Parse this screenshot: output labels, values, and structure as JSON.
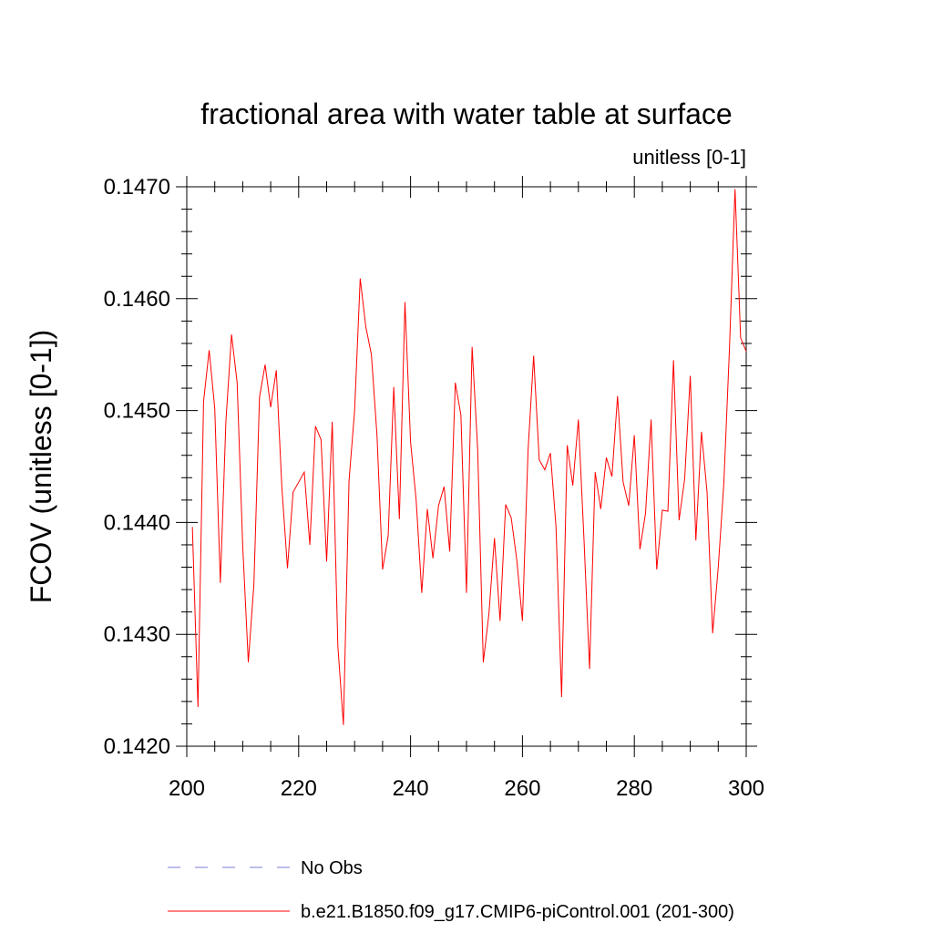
{
  "chart_data": {
    "type": "line",
    "title": "fractional area with water table at surface",
    "subtitle": "unitless [0-1]",
    "xlabel": "",
    "ylabel": "FCOV  (unitless [0-1])",
    "xlim": [
      200,
      300
    ],
    "ylim": [
      0.142,
      0.147
    ],
    "x_ticks": [
      "200",
      "220",
      "240",
      "260",
      "280",
      "300"
    ],
    "x_tick_values": [
      200,
      220,
      240,
      260,
      280,
      300
    ],
    "y_ticks": [
      "0.1420",
      "0.1430",
      "0.1440",
      "0.1450",
      "0.1460",
      "0.1470"
    ],
    "y_tick_values": [
      0.142,
      0.143,
      0.144,
      0.145,
      0.146,
      0.147
    ],
    "legend_position": "bottom",
    "series": [
      {
        "name": "b.e21.B1850.f09_g17.CMIP6-piControl.001 (201-300)",
        "color": "#ff0000",
        "style": "solid",
        "x": [
          201,
          202,
          203,
          204,
          205,
          206,
          207,
          208,
          209,
          210,
          211,
          212,
          213,
          214,
          215,
          216,
          217,
          218,
          219,
          220,
          221,
          222,
          223,
          224,
          225,
          226,
          227,
          228,
          229,
          230,
          231,
          232,
          233,
          234,
          235,
          236,
          237,
          238,
          239,
          240,
          241,
          242,
          243,
          244,
          245,
          246,
          247,
          248,
          249,
          250,
          251,
          252,
          253,
          254,
          255,
          256,
          257,
          258,
          259,
          260,
          261,
          262,
          263,
          264,
          265,
          266,
          267,
          268,
          269,
          270,
          271,
          272,
          273,
          274,
          275,
          276,
          277,
          278,
          279,
          280,
          281,
          282,
          283,
          284,
          285,
          286,
          287,
          288,
          289,
          290,
          291,
          292,
          293,
          294,
          295,
          296,
          297,
          298,
          299,
          300
        ],
        "values": [
          0.14396,
          0.14235,
          0.14508,
          0.14554,
          0.14502,
          0.14346,
          0.14491,
          0.14568,
          0.14525,
          0.14379,
          0.14275,
          0.14345,
          0.14512,
          0.14541,
          0.14503,
          0.14536,
          0.14431,
          0.14359,
          0.14427,
          0.14436,
          0.14445,
          0.1438,
          0.14486,
          0.14474,
          0.14365,
          0.1449,
          0.1429,
          0.14219,
          0.14437,
          0.145,
          0.14618,
          0.14575,
          0.1455,
          0.14478,
          0.14358,
          0.14388,
          0.14521,
          0.14403,
          0.14597,
          0.14472,
          0.1442,
          0.14337,
          0.14412,
          0.14368,
          0.14415,
          0.14432,
          0.14374,
          0.14525,
          0.14496,
          0.14337,
          0.14557,
          0.14465,
          0.14275,
          0.14318,
          0.14386,
          0.14312,
          0.14416,
          0.14404,
          0.14366,
          0.14312,
          0.14464,
          0.14549,
          0.14456,
          0.14447,
          0.14462,
          0.14396,
          0.14244,
          0.14469,
          0.14433,
          0.14492,
          0.14385,
          0.14269,
          0.14445,
          0.14412,
          0.14458,
          0.14441,
          0.14513,
          0.14436,
          0.14415,
          0.14478,
          0.14376,
          0.14408,
          0.14492,
          0.14358,
          0.14411,
          0.1441,
          0.14545,
          0.14402,
          0.14439,
          0.14531,
          0.14384,
          0.14481,
          0.14427,
          0.14301,
          0.1436,
          0.14435,
          0.14555,
          0.14698,
          0.14565,
          0.14553
        ]
      },
      {
        "name": "No Obs",
        "color": "#7b7bd6",
        "style": "dashed",
        "x": [],
        "values": []
      }
    ]
  }
}
